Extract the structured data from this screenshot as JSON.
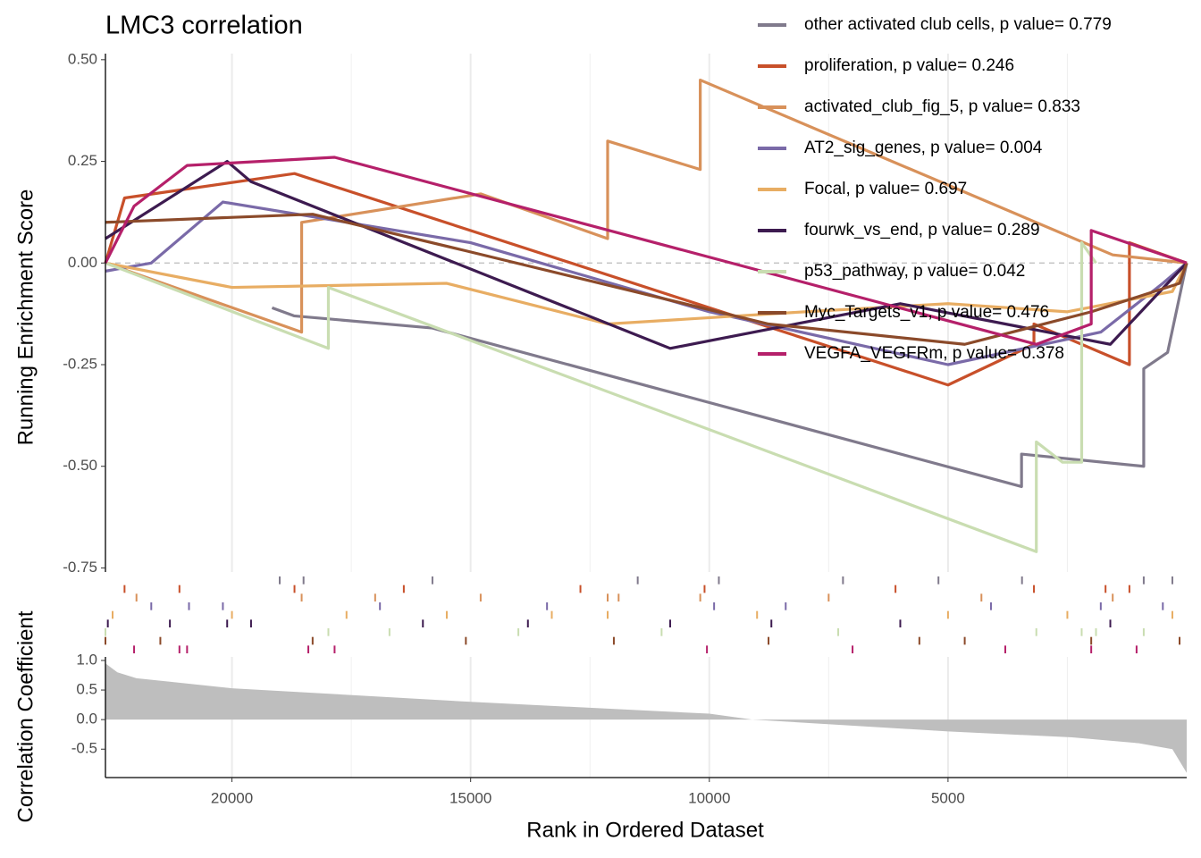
{
  "chart_data": {
    "type": "gsea",
    "title": "LMC3 correlation",
    "xlabel": "Rank in Ordered Dataset",
    "ylabel": "Running Enrichment Score",
    "xlim": [
      22650,
      0
    ],
    "xticks": [
      20000,
      15000,
      10000,
      5000
    ],
    "xminor": [
      17500,
      12500,
      7500,
      2500
    ],
    "ylim": [
      -0.76,
      0.515
    ],
    "yticks": [
      {
        "value": 0.5,
        "label": "0.50"
      },
      {
        "value": 0.25,
        "label": "0.25"
      },
      {
        "value": 0,
        "label": "0.00"
      },
      {
        "value": -0.25,
        "label": "-0.25"
      },
      {
        "value": -0.5,
        "label": "-0.50"
      },
      {
        "value": -0.75,
        "label": "-0.75"
      }
    ],
    "zero_line": 0,
    "grid": true,
    "series": [
      {
        "name": "other activated club cells, p value= 0.779",
        "color": "#807a8c",
        "x": [
          19160,
          18700,
          15800,
          3460,
          3460,
          900,
          900,
          400,
          0
        ],
        "values": [
          -0.11,
          -0.13,
          -0.16,
          -0.55,
          -0.47,
          -0.5,
          -0.26,
          -0.22,
          0
        ],
        "hits": [
          19000,
          18500,
          15800,
          11500,
          9800,
          7200,
          5200,
          3450,
          900,
          300
        ]
      },
      {
        "name": "proliferation, p value= 0.246",
        "color": "#c8502a",
        "x": [
          22650,
          22250,
          18690,
          5000,
          3200,
          3200,
          1200,
          1200,
          0
        ],
        "values": [
          0,
          0.16,
          0.22,
          -0.3,
          -0.2,
          -0.15,
          -0.25,
          0.05,
          0
        ],
        "hits": [
          22250,
          21100,
          18690,
          16400,
          12700,
          10100,
          6100,
          3200,
          1700,
          1200
        ]
      },
      {
        "name": "activated_club_fig_5, p value= 0.833",
        "color": "#d8915a",
        "x": [
          22650,
          18540,
          18540,
          14790,
          12130,
          12130,
          10190,
          10190,
          1550,
          0
        ],
        "values": [
          0,
          -0.17,
          0.1,
          0.17,
          0.06,
          0.3,
          0.23,
          0.45,
          0.02,
          0
        ],
        "hits": [
          22000,
          18540,
          17000,
          14790,
          12130,
          11900,
          10190,
          7500,
          4300,
          1550
        ]
      },
      {
        "name": "AT2_sig_genes, p value= 0.004",
        "color": "#7a6aa8",
        "x": [
          22650,
          21690,
          20190,
          15000,
          10000,
          5000,
          1800,
          500,
          0
        ],
        "values": [
          -0.02,
          0,
          0.15,
          0.05,
          -0.12,
          -0.25,
          -0.17,
          -0.05,
          0
        ],
        "hits": [
          21690,
          20900,
          20190,
          16900,
          13400,
          9900,
          8400,
          4100,
          1800,
          500
        ]
      },
      {
        "name": "Focal, p value= 0.697",
        "color": "#e8ad63",
        "x": [
          22650,
          20000,
          15500,
          12130,
          8000,
          5000,
          2500,
          300,
          0
        ],
        "values": [
          0,
          -0.06,
          -0.05,
          -0.15,
          -0.12,
          -0.1,
          -0.12,
          -0.07,
          0
        ],
        "hits": [
          22500,
          20000,
          17600,
          15500,
          13300,
          12130,
          9000,
          5000,
          2500,
          300
        ]
      },
      {
        "name": "fourwk_vs_end, p value= 0.289",
        "color": "#3d1b50",
        "x": [
          22650,
          20100,
          19600,
          10820,
          6000,
          1600,
          0
        ],
        "values": [
          0.06,
          0.25,
          0.2,
          -0.21,
          -0.1,
          -0.2,
          0
        ],
        "hits": [
          22600,
          21300,
          20100,
          19600,
          16000,
          13800,
          10820,
          8700,
          6000,
          1600
        ]
      },
      {
        "name": "p53_pathway, p value= 0.042",
        "color": "#c9ddb1",
        "x": [
          22650,
          17980,
          17980,
          3150,
          3150,
          2600,
          2200,
          2200,
          1900
        ],
        "values": [
          0,
          -0.21,
          -0.06,
          -0.71,
          -0.44,
          -0.49,
          -0.49,
          0.05,
          0
        ],
        "hits": [
          22650,
          17980,
          16700,
          14000,
          11000,
          7300,
          3150,
          2200,
          1900,
          900
        ]
      },
      {
        "name": "Myc_Targets_v1, p value= 0.476",
        "color": "#8b4a2a",
        "x": [
          22650,
          18310,
          15100,
          8760,
          4650,
          2000,
          150,
          0
        ],
        "values": [
          0.1,
          0.12,
          0.03,
          -0.15,
          -0.2,
          -0.12,
          -0.05,
          0
        ],
        "hits": [
          22650,
          21500,
          18310,
          15100,
          12000,
          8760,
          5600,
          4650,
          2000,
          150
        ]
      },
      {
        "name": "VEGFA_VEGFRm, p value= 0.378",
        "color": "#b5206a",
        "x": [
          22650,
          22050,
          20940,
          17850,
          3150,
          2000,
          2000,
          0
        ],
        "values": [
          0,
          0.14,
          0.24,
          0.26,
          -0.2,
          -0.15,
          0.08,
          0
        ],
        "hits": [
          22050,
          21100,
          20940,
          18400,
          17850,
          10050,
          7000,
          3800,
          2000,
          1050
        ]
      }
    ],
    "correlation": {
      "ylabel": "Correlation Coefficient",
      "ylim": [
        -0.98,
        1.06
      ],
      "yticks": [
        {
          "value": 1,
          "label": "1.0"
        },
        {
          "value": 0.5,
          "label": "0.5"
        },
        {
          "value": 0,
          "label": "0.0"
        },
        {
          "value": -0.5,
          "label": "-0.5"
        }
      ],
      "color": "#bebebe",
      "x": [
        22650,
        22400,
        22000,
        20000,
        15000,
        10000,
        9100,
        5000,
        2400,
        1000,
        300,
        0
      ],
      "values": [
        0.95,
        0.8,
        0.7,
        0.53,
        0.3,
        0.1,
        0,
        -0.2,
        -0.3,
        -0.4,
        -0.5,
        -0.9
      ]
    }
  }
}
